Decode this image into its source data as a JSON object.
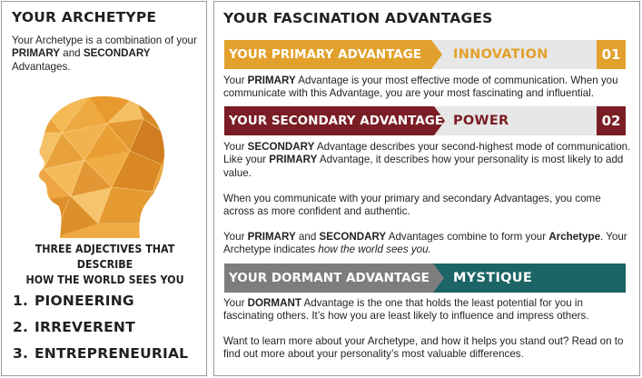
{
  "left": {
    "heading": "YOUR ARCHETYPE",
    "intro": {
      "t1": "Your Archetype is a combination of your ",
      "primary": "PRIMARY",
      "t2": " and ",
      "secondary": "SECONDARY",
      "t3": " Advantages."
    },
    "adjectives_title_line1": "THREE ADJECTIVES THAT DESCRIBE",
    "adjectives_title_line2": "HOW THE WORLD SEES YOU",
    "adjectives": [
      {
        "num": "1.",
        "label": "PIONEERING"
      },
      {
        "num": "2.",
        "label": "IRREVERENT"
      },
      {
        "num": "3.",
        "label": "ENTREPRENEURIAL"
      }
    ]
  },
  "right": {
    "heading": "YOUR FASCINATION ADVANTAGES",
    "primary_band": {
      "label": "YOUR PRIMARY ADVANTAGE",
      "value": "INNOVATION",
      "badge": "01"
    },
    "primary_text": {
      "t1": "Your ",
      "b1": "PRIMARY",
      "t2": " Advantage is your most effective mode of communication. When you communicate with this Advantage, you are your most fascinating and influential."
    },
    "secondary_band": {
      "label": "YOUR SECONDARY ADVANTAGE",
      "value": "POWER",
      "badge": "02"
    },
    "secondary_text": {
      "t1": "Your ",
      "b1": "SECONDARY",
      "t2": " Advantage describes your second-highest mode of communication. Like your ",
      "b2": "PRIMARY",
      "t3": " Advantage, it describes how your personality is most likely to add value."
    },
    "combine_text": "When you communicate with your primary and secondary Advantages, you come across as more confident and authentic.",
    "archetype_text": {
      "t1": "Your ",
      "b1": "PRIMARY",
      "t2": " and ",
      "b2": "SECONDARY",
      "t3": " Advantages combine to form your ",
      "b3": "Archetype",
      "t4": ". Your Archetype indicates ",
      "i1": "how the world sees you."
    },
    "dormant_band": {
      "label": "YOUR DORMANT ADVANTAGE",
      "value": "MYSTIQUE"
    },
    "dormant_text": {
      "t1": "Your ",
      "b1": "DORMANT",
      "t2": " Advantage is the one that holds the least potential for you in fascinating others. It’s how you are least likely to influence and impress others."
    },
    "more_text": "Want to learn more about your Archetype, and how it helps you stand out? Read on to find out more about your personality’s most valuable differences."
  },
  "colors": {
    "primary": "#e2a12c",
    "secondary": "#7a1d24",
    "dormant_label": "#7d7d7d",
    "dormant_value_bg": "#1c6465",
    "band_track": "#e7e7e7",
    "border": "#9d9d9d"
  },
  "icons": {
    "archetype_art": "geometric-head-profile-icon"
  }
}
